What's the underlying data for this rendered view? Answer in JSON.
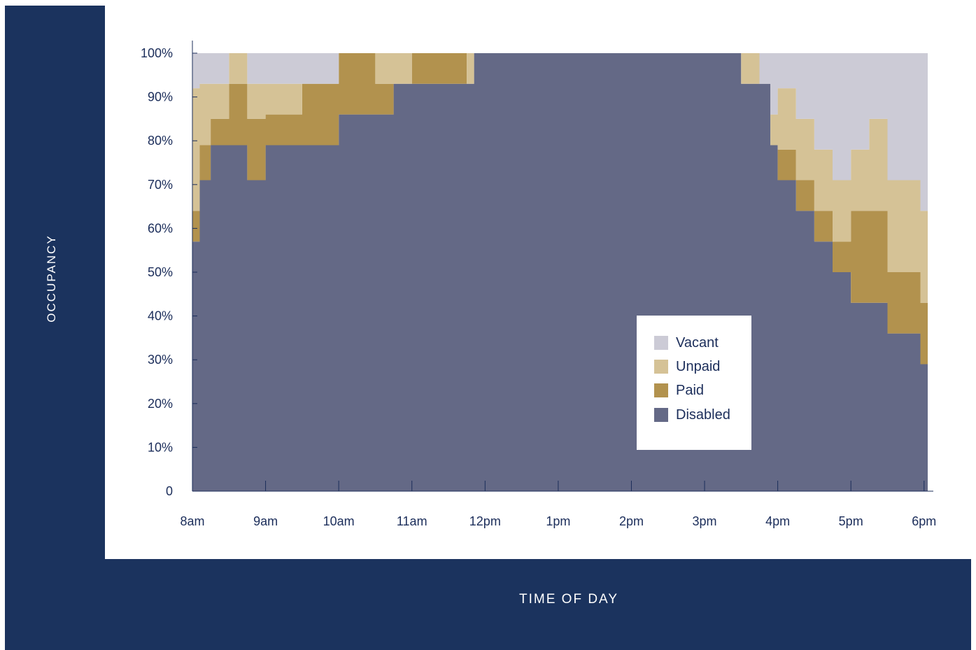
{
  "chart_data": {
    "type": "area",
    "stacked": true,
    "xlabel": "TIME OF DAY",
    "ylabel": "OCCUPANCY",
    "x_ticks": [
      "8am",
      "9am",
      "10am",
      "11am",
      "12pm",
      "1pm",
      "2pm",
      "3pm",
      "4pm",
      "5pm",
      "6pm"
    ],
    "y_ticks": [
      "0",
      "10%",
      "20%",
      "30%",
      "40%",
      "50%",
      "60%",
      "70%",
      "80%",
      "90%",
      "100%"
    ],
    "ylim": [
      0,
      100
    ],
    "xlim_hours": [
      8,
      18.05
    ],
    "legend_position": "lower-right",
    "colors": {
      "Vacant": "#cccbd6",
      "Unpaid": "#d5c296",
      "Paid": "#b2924e",
      "Disabled": "#646986"
    },
    "x_hours": [
      8.0,
      8.1,
      8.25,
      8.5,
      8.75,
      9.0,
      9.25,
      9.5,
      9.75,
      10.0,
      10.25,
      10.5,
      10.75,
      11.0,
      11.25,
      11.5,
      11.75,
      11.85,
      12.0,
      13.0,
      14.0,
      14.6,
      15.0,
      15.25,
      15.5,
      15.75,
      15.9,
      16.0,
      16.25,
      16.5,
      16.75,
      17.0,
      17.25,
      17.5,
      17.75,
      17.95,
      18.05
    ],
    "series": [
      {
        "name": "Disabled",
        "values": [
          57,
          71,
          79,
          79,
          71,
          79,
          79,
          79,
          79,
          86,
          86,
          86,
          93,
          93,
          93,
          93,
          93,
          100,
          100,
          100,
          100,
          100,
          100,
          100,
          93,
          93,
          79,
          71,
          64,
          57,
          50,
          43,
          43,
          36,
          36,
          29,
          14
        ]
      },
      {
        "name": "Paid",
        "values": [
          7,
          8,
          6,
          14,
          14,
          7,
          7,
          14,
          14,
          14,
          14,
          7,
          0,
          7,
          7,
          7,
          0,
          0,
          0,
          0,
          0,
          0,
          0,
          0,
          0,
          0,
          0,
          7,
          7,
          7,
          7,
          21,
          21,
          14,
          14,
          14,
          14
        ]
      },
      {
        "name": "Unpaid",
        "values": [
          28,
          14,
          8,
          7,
          8,
          7,
          7,
          0,
          0,
          0,
          0,
          7,
          7,
          0,
          0,
          0,
          7,
          0,
          0,
          0,
          0,
          0,
          0,
          0,
          7,
          0,
          7,
          14,
          14,
          14,
          14,
          14,
          21,
          21,
          21,
          21,
          35
        ]
      },
      {
        "name": "Vacant",
        "values": [
          8,
          7,
          7,
          0,
          7,
          7,
          7,
          7,
          7,
          0,
          0,
          0,
          0,
          0,
          0,
          0,
          0,
          0,
          0,
          0,
          0,
          0,
          0,
          0,
          0,
          7,
          14,
          8,
          15,
          22,
          29,
          22,
          15,
          29,
          29,
          36,
          37
        ]
      }
    ]
  },
  "legend": {
    "items": [
      {
        "label": "Vacant",
        "color": "#cccbd6"
      },
      {
        "label": "Unpaid",
        "color": "#d5c296"
      },
      {
        "label": "Paid",
        "color": "#b2924e"
      },
      {
        "label": "Disabled",
        "color": "#646986"
      }
    ]
  }
}
